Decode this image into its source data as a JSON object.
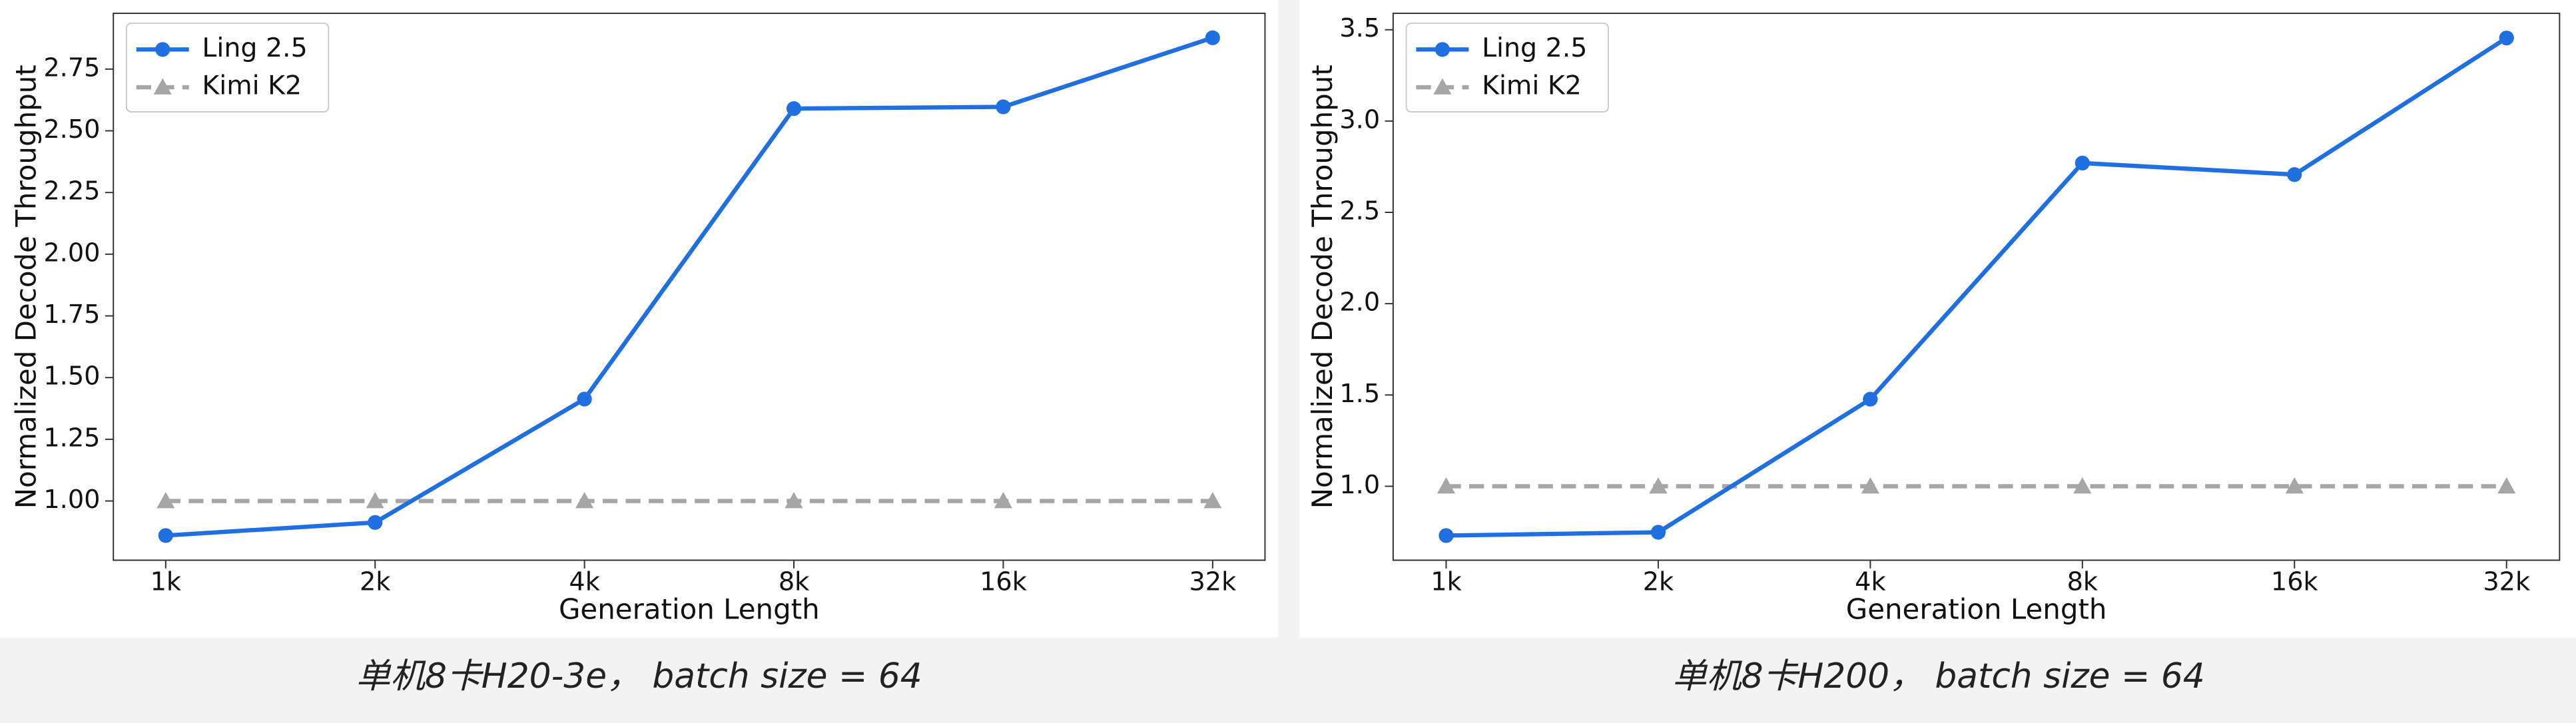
{
  "chart_data": [
    {
      "type": "line",
      "caption": "单机8卡H20-3e， batch size = 64",
      "xlabel": "Generation Length",
      "ylabel": "Normalized Decode Throughput",
      "categories": [
        "1k",
        "2k",
        "4k",
        "8k",
        "16k",
        "32k"
      ],
      "series": [
        {
          "name": "Ling 2.5",
          "color": "#1f6fe0",
          "marker": "circle",
          "linestyle": "solid",
          "values": [
            0.86,
            0.913,
            1.413,
            2.59,
            2.597,
            2.877
          ]
        },
        {
          "name": "Kimi K2",
          "color": "#a6a6a6",
          "marker": "triangle",
          "linestyle": "dashed",
          "values": [
            1.0,
            1.0,
            1.0,
            1.0,
            1.0,
            1.0
          ]
        }
      ],
      "ylim": [
        0.76,
        2.976
      ],
      "yticks": [
        {
          "value": 1.0,
          "label": "1.00"
        },
        1.25,
        {
          "value": 1.5,
          "label": "1.50"
        },
        1.75,
        {
          "value": 2.0,
          "label": "2.00"
        },
        2.25,
        {
          "value": 2.5,
          "label": "2.50"
        },
        2.75
      ],
      "legend": "upper left",
      "grid": false
    },
    {
      "type": "line",
      "caption": "单机8卡H200， batch size = 64",
      "xlabel": "Generation Length",
      "ylabel": "Normalized Decode Throughput",
      "categories": [
        "1k",
        "2k",
        "4k",
        "8k",
        "16k",
        "32k"
      ],
      "series": [
        {
          "name": "Ling 2.5",
          "color": "#1f6fe0",
          "marker": "circle",
          "linestyle": "solid",
          "values": [
            0.73,
            0.748,
            1.477,
            2.77,
            2.707,
            3.455
          ]
        },
        {
          "name": "Kimi K2",
          "color": "#a6a6a6",
          "marker": "triangle",
          "linestyle": "dashed",
          "values": [
            1.0,
            1.0,
            1.0,
            1.0,
            1.0,
            1.0
          ]
        }
      ],
      "ylim": [
        0.595,
        3.59
      ],
      "yticks": [
        {
          "value": 1.0,
          "label": "1.0"
        },
        1.5,
        {
          "value": 2.0,
          "label": "2.0"
        },
        2.5,
        {
          "value": 3.0,
          "label": "3.0"
        },
        3.5
      ],
      "legend": "upper left",
      "grid": false
    }
  ]
}
